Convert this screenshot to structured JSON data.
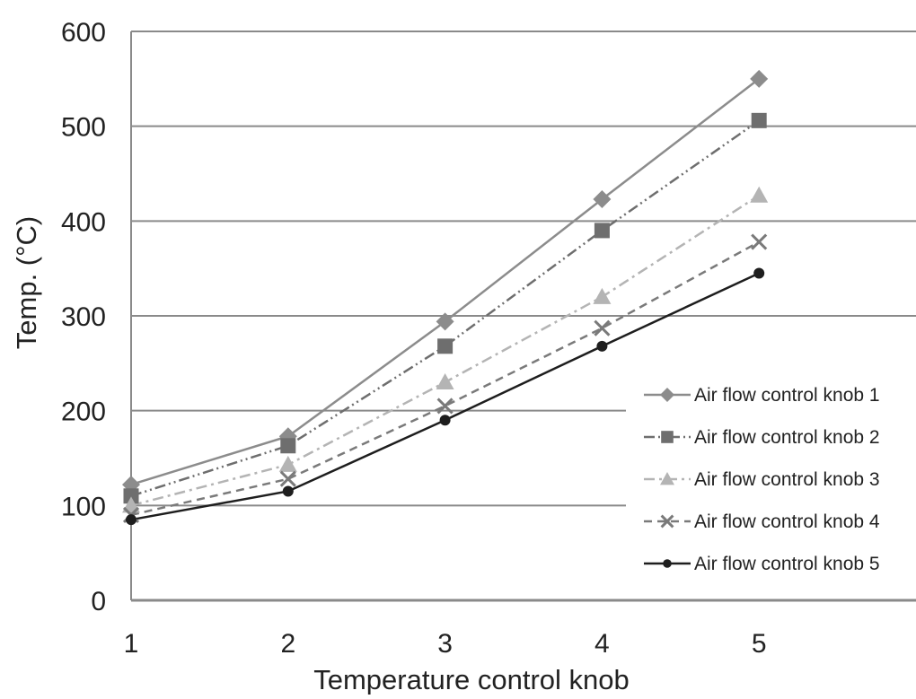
{
  "chart_data": {
    "type": "line",
    "title": "",
    "xlabel": "Temperature control knob",
    "ylabel": "Temp. (°C)",
    "x": [
      1,
      2,
      3,
      4,
      5
    ],
    "x_ticks": [
      "1",
      "2",
      "3",
      "4",
      "5"
    ],
    "xlim": [
      1,
      6
    ],
    "ylim": [
      0,
      600
    ],
    "y_ticks": [
      "0",
      "100",
      "200",
      "300",
      "400",
      "500",
      "600"
    ],
    "grid": "horizontal",
    "legend_position": "bottom-right",
    "series": [
      {
        "name": "Air flow control knob 1",
        "values": [
          122,
          173,
          294,
          423,
          550
        ],
        "marker": "diamond",
        "line_style": "solid",
        "color": "#8c8c8c"
      },
      {
        "name": "Air flow control knob 2",
        "values": [
          110,
          163,
          268,
          390,
          506
        ],
        "marker": "square",
        "line_style": "dash-dot-dot",
        "color": "#6e6e6e"
      },
      {
        "name": "Air flow control knob 3",
        "values": [
          100,
          143,
          230,
          320,
          427
        ],
        "marker": "triangle",
        "line_style": "dash-dot",
        "color": "#b4b4b4"
      },
      {
        "name": "Air flow control knob 4",
        "values": [
          90,
          128,
          205,
          287,
          378
        ],
        "marker": "x",
        "line_style": "dashed",
        "color": "#7a7a7a"
      },
      {
        "name": "Air flow control knob 5",
        "values": [
          85,
          115,
          190,
          268,
          345
        ],
        "marker": "circle",
        "line_style": "solid",
        "color": "#1e1e1e"
      }
    ]
  }
}
